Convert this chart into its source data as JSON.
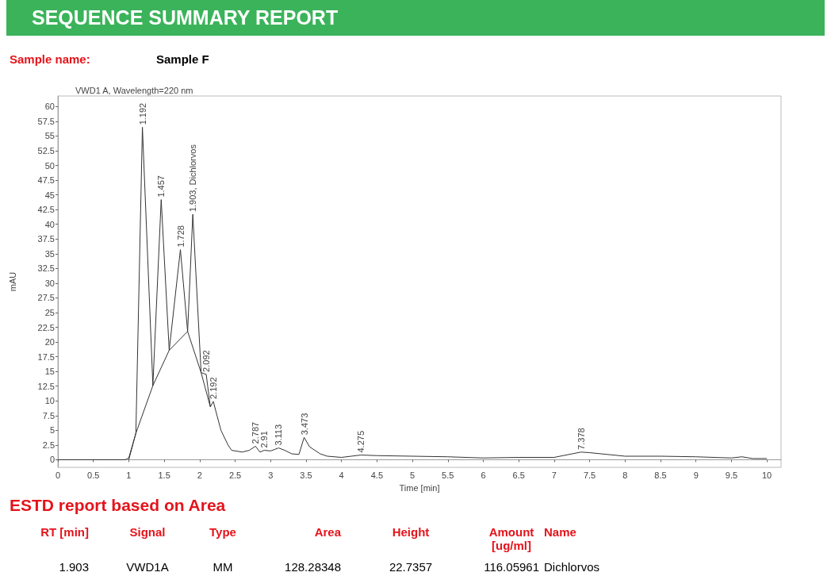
{
  "chart_data": {
    "type": "line",
    "title": "SEQUENCE SUMMARY REPORT",
    "subtitle": "VWD1 A, Wavelength=220 nm",
    "xlabel": "Time [min]",
    "ylabel": "mAU",
    "xlim": [
      0,
      10.2
    ],
    "ylim": [
      -1.3,
      61.8
    ],
    "xticks": [
      0,
      0.5,
      1,
      1.5,
      2,
      2.5,
      3,
      3.5,
      4,
      4.5,
      5,
      5.5,
      6,
      6.5,
      7,
      7.5,
      8,
      8.5,
      9,
      9.5,
      10
    ],
    "yticks": [
      0,
      2.5,
      5,
      7.5,
      10,
      12.5,
      15,
      17.5,
      20,
      22.5,
      25,
      27.5,
      30,
      32.5,
      35,
      37.5,
      40,
      42.5,
      45,
      47.5,
      50,
      52.5,
      55,
      57.5,
      60
    ],
    "marker": "none",
    "line_style": "solid",
    "series": [
      {
        "color": "#333333",
        "x": [
          0,
          0.95,
          1.0,
          1.1,
          1.192,
          1.34,
          1.457,
          1.57,
          1.728,
          1.83,
          1.903,
          2.02,
          2.092,
          2.15,
          2.192,
          2.3,
          2.4,
          2.45,
          2.6,
          2.7,
          2.787,
          2.85,
          2.91,
          3.0,
          3.113,
          3.2,
          3.3,
          3.4,
          3.473,
          3.55,
          3.7,
          3.8,
          4.0,
          4.275,
          4.5,
          5.0,
          5.5,
          6.0,
          6.5,
          7.0,
          7.378,
          7.5,
          8.0,
          8.5,
          9.0,
          9.5,
          9.65,
          9.8,
          10.0
        ],
        "values": [
          0,
          0,
          0.3,
          4.5,
          56.5,
          12.6,
          44.2,
          18.6,
          35.7,
          21.8,
          41.7,
          14.8,
          14.5,
          9,
          9.9,
          5,
          2.5,
          1.6,
          1.3,
          1.6,
          2.3,
          1.3,
          1.6,
          1.5,
          2.0,
          1.6,
          1.0,
          0.9,
          3.8,
          2.2,
          1.0,
          0.6,
          0.4,
          0.8,
          0.7,
          0.6,
          0.5,
          0.3,
          0.4,
          0.4,
          1.3,
          1.2,
          0.6,
          0.6,
          0.5,
          0.3,
          0.5,
          0.2,
          0.2
        ]
      },
      {
        "color": "#333333",
        "x": [
          1.0,
          1.1,
          1.34,
          1.57,
          1.83,
          2.02,
          2.15
        ],
        "values": [
          0,
          4.5,
          12.6,
          18.6,
          21.8,
          14.8,
          9
        ]
      }
    ],
    "annotations": [
      {
        "text": "1.192",
        "x": 1.192,
        "y": 56.5
      },
      {
        "text": "1.457",
        "x": 1.457,
        "y": 44.2
      },
      {
        "text": "1.728",
        "x": 1.728,
        "y": 35.7
      },
      {
        "text": "1.903, Dichlorvos",
        "x": 1.903,
        "y": 41.7
      },
      {
        "text": "2.092",
        "x": 2.092,
        "y": 14.5
      },
      {
        "text": "2.192",
        "x": 2.192,
        "y": 9.9
      },
      {
        "text": "2.787",
        "x": 2.787,
        "y": 2.3
      },
      {
        "text": "2.91",
        "x": 2.91,
        "y": 1.6
      },
      {
        "text": "3.113",
        "x": 3.113,
        "y": 2.0
      },
      {
        "text": "3.473",
        "x": 3.473,
        "y": 3.8
      },
      {
        "text": "4.275",
        "x": 4.275,
        "y": 0.8
      },
      {
        "text": "7.378",
        "x": 7.378,
        "y": 1.3
      },
      "Sample name:",
      "Sample F",
      "ESTD report based on Area",
      "RT [min]",
      "Signal",
      "Type",
      "Area",
      "Height",
      "Amount [ug/ml]",
      "Name",
      "1.903",
      "VWD1A",
      "MM",
      "128.28348",
      "22.7357",
      "116.05961",
      "Dichlorvos"
    ]
  }
}
